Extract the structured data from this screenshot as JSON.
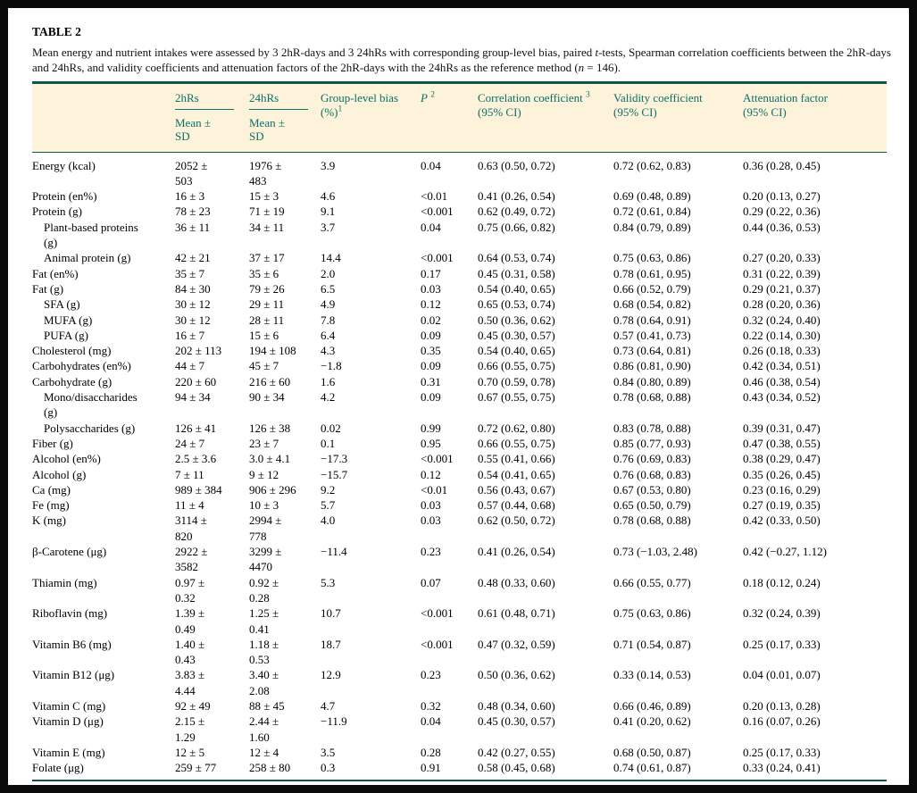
{
  "colors": {
    "accent": "#0c6f68",
    "header_band": "#fcf3da",
    "rule": "#0d564e"
  },
  "title": "TABLE 2",
  "caption": [
    "Mean energy and nutrient intakes were assessed by 3 2hR-days and 3 24hRs with corresponding group-level bias, paired ",
    "t",
    "-tests, Spearman correlation coefficients between the 2hR-days and 24hRs, and validity coefficients and attenuation factors of the 2hR-days with the 24hRs as the reference method (",
    "n",
    " = 146)."
  ],
  "header": {
    "hrs2": "2hRs",
    "hrs24": "24hRs",
    "mean_sd": "Mean ± SD",
    "bias_l1": "Group-level bias",
    "bias_l2": "(%)",
    "bias_sup": "1",
    "p": "P",
    "p_sup": "2",
    "corr_l1": "Correlation coefficient",
    "corr_sup": "3",
    "ci": "(95% CI)",
    "validity_l1": "Validity coefficient",
    "atten_l1": "Attenuation factor"
  },
  "rows": [
    {
      "name": "Energy (kcal)",
      "indent": false,
      "v2": "2052 ± 503",
      "v24": "1976 ± 483",
      "bias": "3.9",
      "p": "0.04",
      "corr": "0.63 (0.50, 0.72)",
      "valid": "0.72 (0.62, 0.83)",
      "atten": "0.36 (0.28, 0.45)"
    },
    {
      "name": "Protein (en%)",
      "indent": false,
      "v2": "16 ± 3",
      "v24": "15 ± 3",
      "bias": "4.6",
      "p": "<0.01",
      "corr": "0.41 (0.26, 0.54)",
      "valid": "0.69 (0.48, 0.89)",
      "atten": "0.20 (0.13, 0.27)"
    },
    {
      "name": "Protein (g)",
      "indent": false,
      "v2": "78 ± 23",
      "v24": "71 ± 19",
      "bias": "9.1",
      "p": "<0.001",
      "corr": "0.62 (0.49, 0.72)",
      "valid": "0.72 (0.61, 0.84)",
      "atten": "0.29 (0.22, 0.36)"
    },
    {
      "name": "Plant-based proteins (g)",
      "indent": true,
      "v2": "36 ± 11",
      "v24": "34 ± 11",
      "bias": "3.7",
      "p": "0.04",
      "corr": "0.75 (0.66, 0.82)",
      "valid": "0.84 (0.79, 0.89)",
      "atten": "0.44 (0.36, 0.53)"
    },
    {
      "name": "Animal protein (g)",
      "indent": true,
      "v2": "42 ± 21",
      "v24": "37 ± 17",
      "bias": "14.4",
      "p": "<0.001",
      "corr": "0.64 (0.53, 0.74)",
      "valid": "0.75 (0.63, 0.86)",
      "atten": "0.27 (0.20, 0.33)"
    },
    {
      "name": "Fat (en%)",
      "indent": false,
      "v2": "35 ± 7",
      "v24": "35 ± 6",
      "bias": "2.0",
      "p": "0.17",
      "corr": "0.45 (0.31, 0.58)",
      "valid": "0.78 (0.61, 0.95)",
      "atten": "0.31 (0.22, 0.39)"
    },
    {
      "name": "Fat (g)",
      "indent": false,
      "v2": "84 ± 30",
      "v24": "79 ± 26",
      "bias": "6.5",
      "p": "0.03",
      "corr": "0.54 (0.40, 0.65)",
      "valid": "0.66 (0.52, 0.79)",
      "atten": "0.29 (0.21, 0.37)"
    },
    {
      "name": "SFA (g)",
      "indent": true,
      "v2": "30 ± 12",
      "v24": "29 ± 11",
      "bias": "4.9",
      "p": "0.12",
      "corr": "0.65 (0.53, 0.74)",
      "valid": "0.68 (0.54, 0.82)",
      "atten": "0.28 (0.20, 0.36)"
    },
    {
      "name": "MUFA (g)",
      "indent": true,
      "v2": "30 ± 12",
      "v24": "28 ± 11",
      "bias": "7.8",
      "p": "0.02",
      "corr": "0.50 (0.36, 0.62)",
      "valid": "0.78 (0.64, 0.91)",
      "atten": "0.32 (0.24, 0.40)"
    },
    {
      "name": "PUFA (g)",
      "indent": true,
      "v2": "16 ± 7",
      "v24": "15 ± 6",
      "bias": "6.4",
      "p": "0.09",
      "corr": "0.45 (0.30, 0.57)",
      "valid": "0.57 (0.41, 0.73)",
      "atten": "0.22 (0.14, 0.30)"
    },
    {
      "name": "Cholesterol (mg)",
      "indent": false,
      "v2": "202 ± 113",
      "v24": "194 ± 108",
      "bias": "4.3",
      "p": "0.35",
      "corr": "0.54 (0.40, 0.65)",
      "valid": "0.73 (0.64, 0.81)",
      "atten": "0.26 (0.18, 0.33)"
    },
    {
      "name": "Carbohydrates (en%)",
      "indent": false,
      "v2": "44 ± 7",
      "v24": "45 ± 7",
      "bias": "−1.8",
      "p": "0.09",
      "corr": "0.66 (0.55, 0.75)",
      "valid": "0.86 (0.81, 0.90)",
      "atten": "0.42 (0.34, 0.51)"
    },
    {
      "name": "Carbohydrate (g)",
      "indent": false,
      "v2": "220 ± 60",
      "v24": "216 ± 60",
      "bias": "1.6",
      "p": "0.31",
      "corr": "0.70 (0.59, 0.78)",
      "valid": "0.84 (0.80, 0.89)",
      "atten": "0.46 (0.38, 0.54)"
    },
    {
      "name": "Mono/disaccharides (g)",
      "indent": true,
      "v2": "94 ± 34",
      "v24": "90 ± 34",
      "bias": "4.2",
      "p": "0.09",
      "corr": "0.67 (0.55, 0.75)",
      "valid": "0.78 (0.68, 0.88)",
      "atten": "0.43 (0.34, 0.52)"
    },
    {
      "name": "Polysaccharides (g)",
      "indent": true,
      "v2": "126 ± 41",
      "v24": "126 ± 38",
      "bias": "0.02",
      "p": "0.99",
      "corr": "0.72 (0.62, 0.80)",
      "valid": "0.83 (0.78, 0.88)",
      "atten": "0.39 (0.31, 0.47)"
    },
    {
      "name": "Fiber (g)",
      "indent": false,
      "v2": "24 ± 7",
      "v24": "23 ± 7",
      "bias": "0.1",
      "p": "0.95",
      "corr": "0.66 (0.55, 0.75)",
      "valid": "0.85 (0.77, 0.93)",
      "atten": "0.47 (0.38, 0.55)"
    },
    {
      "name": "Alcohol (en%)",
      "indent": false,
      "v2": "2.5 ± 3.6",
      "v24": "3.0 ± 4.1",
      "bias": "−17.3",
      "p": "<0.001",
      "corr": "0.55 (0.41, 0.66)",
      "valid": "0.76 (0.69, 0.83)",
      "atten": "0.38 (0.29, 0.47)"
    },
    {
      "name": "Alcohol (g)",
      "indent": false,
      "v2": "7 ± 11",
      "v24": "9 ± 12",
      "bias": "−15.7",
      "p": "0.12",
      "corr": "0.54 (0.41, 0.65)",
      "valid": "0.76 (0.68, 0.83)",
      "atten": "0.35 (0.26, 0.45)"
    },
    {
      "name": "Ca (mg)",
      "indent": false,
      "v2": "989 ± 384",
      "v24": "906 ± 296",
      "bias": "9.2",
      "p": "<0.01",
      "corr": "0.56 (0.43, 0.67)",
      "valid": "0.67 (0.53, 0.80)",
      "atten": "0.23 (0.16, 0.29)"
    },
    {
      "name": "Fe (mg)",
      "indent": false,
      "v2": "11 ± 4",
      "v24": "10 ± 3",
      "bias": "5.7",
      "p": "0.03",
      "corr": "0.57 (0.44, 0.68)",
      "valid": "0.65 (0.50, 0.79)",
      "atten": "0.27 (0.19, 0.35)"
    },
    {
      "name": "K (mg)",
      "indent": false,
      "v2": "3114 ± 820",
      "v24": "2994 ± 778",
      "bias": "4.0",
      "p": "0.03",
      "corr": "0.62 (0.50, 0.72)",
      "valid": "0.78 (0.68, 0.88)",
      "atten": "0.42 (0.33, 0.50)"
    },
    {
      "name": "β-Carotene (μg)",
      "indent": false,
      "v2": "2922 ± 3582",
      "v24": "3299 ± 4470",
      "bias": "−11.4",
      "p": "0.23",
      "corr": "0.41 (0.26, 0.54)",
      "valid": "0.73 (−1.03, 2.48)",
      "atten": "0.42 (−0.27, 1.12)"
    },
    {
      "name": "Thiamin (mg)",
      "indent": false,
      "v2": "0.97 ± 0.32",
      "v24": "0.92 ± 0.28",
      "bias": "5.3",
      "p": "0.07",
      "corr": "0.48 (0.33, 0.60)",
      "valid": "0.66 (0.55, 0.77)",
      "atten": "0.18 (0.12, 0.24)"
    },
    {
      "name": "Riboflavin (mg)",
      "indent": false,
      "v2": "1.39 ± 0.49",
      "v24": "1.25 ± 0.41",
      "bias": "10.7",
      "p": "<0.001",
      "corr": "0.61 (0.48, 0.71)",
      "valid": "0.75 (0.63, 0.86)",
      "atten": "0.32 (0.24, 0.39)"
    },
    {
      "name": "Vitamin B6 (mg)",
      "indent": false,
      "v2": "1.40 ± 0.43",
      "v24": "1.18 ± 0.53",
      "bias": "18.7",
      "p": "<0.001",
      "corr": "0.47 (0.32, 0.59)",
      "valid": "0.71 (0.54, 0.87)",
      "atten": "0.25 (0.17, 0.33)"
    },
    {
      "name": "Vitamin B12 (μg)",
      "indent": false,
      "v2": "3.83 ± 4.44",
      "v24": "3.40 ± 2.08",
      "bias": "12.9",
      "p": "0.23",
      "corr": "0.50 (0.36, 0.62)",
      "valid": "0.33 (0.14, 0.53)",
      "atten": "0.04 (0.01, 0.07)"
    },
    {
      "name": "Vitamin C (mg)",
      "indent": false,
      "v2": "92 ± 49",
      "v24": "88 ± 45",
      "bias": "4.7",
      "p": "0.32",
      "corr": "0.48 (0.34, 0.60)",
      "valid": "0.66 (0.46, 0.89)",
      "atten": "0.20 (0.13, 0.28)"
    },
    {
      "name": "Vitamin D (μg)",
      "indent": false,
      "v2": "2.15 ± 1.29",
      "v24": "2.44 ± 1.60",
      "bias": "−11.9",
      "p": "0.04",
      "corr": "0.45 (0.30, 0.57)",
      "valid": "0.41 (0.20, 0.62)",
      "atten": "0.16 (0.07, 0.26)"
    },
    {
      "name": "Vitamin E (mg)",
      "indent": false,
      "v2": "12 ± 5",
      "v24": "12 ± 4",
      "bias": "3.5",
      "p": "0.28",
      "corr": "0.42 (0.27, 0.55)",
      "valid": "0.68 (0.50, 0.87)",
      "atten": "0.25 (0.17, 0.33)"
    },
    {
      "name": "Folate (μg)",
      "indent": false,
      "v2": "259 ± 77",
      "v24": "258 ± 80",
      "bias": "0.3",
      "p": "0.91",
      "corr": "0.58 (0.45, 0.68)",
      "valid": "0.74 (0.61, 0.87)",
      "atten": "0.33 (0.24, 0.41)"
    }
  ]
}
